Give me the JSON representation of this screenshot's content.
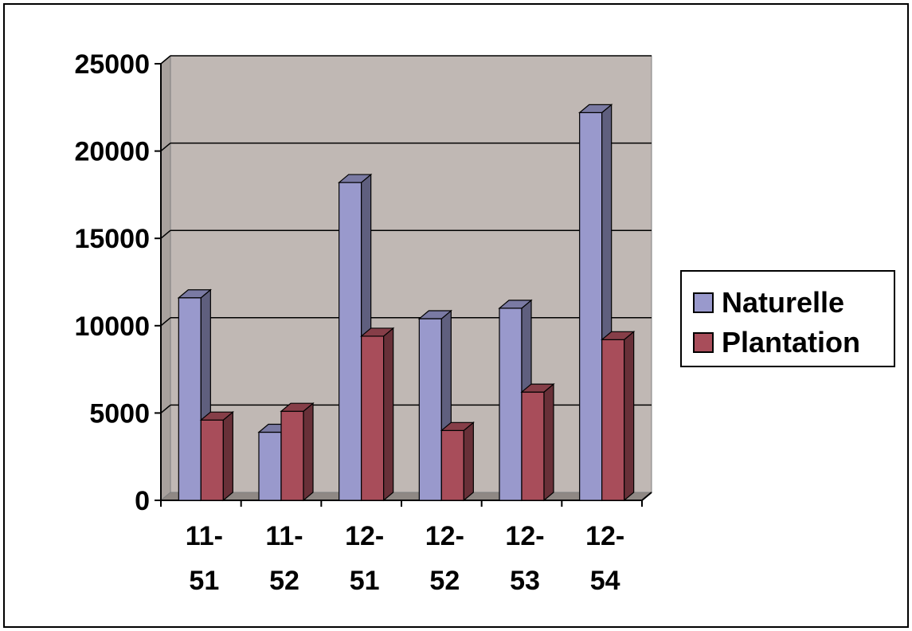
{
  "chart_data": {
    "type": "bar",
    "categories": [
      [
        "11-",
        "51"
      ],
      [
        "11-",
        "52"
      ],
      [
        "12-",
        "51"
      ],
      [
        "12-",
        "52"
      ],
      [
        "12-",
        "53"
      ],
      [
        "12-",
        "54"
      ]
    ],
    "series": [
      {
        "name": "Naturelle",
        "values": [
          11600,
          3900,
          18200,
          10400,
          11000,
          22200
        ],
        "color": "#9999cc"
      },
      {
        "name": "Plantation",
        "values": [
          4600,
          5100,
          9400,
          4000,
          6200,
          9200
        ],
        "color": "#a84d5a"
      }
    ],
    "ylim": [
      0,
      25000
    ],
    "yticks": [
      0,
      5000,
      10000,
      15000,
      20000,
      25000
    ],
    "grid": true,
    "legend_position": "right",
    "wall_color": "#c0b8b4",
    "floor_color": "#8f8884"
  }
}
